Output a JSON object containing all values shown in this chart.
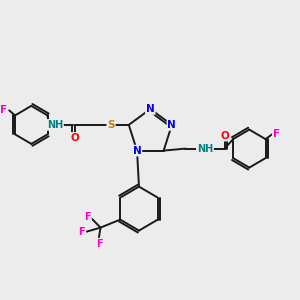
{
  "background_color": "#ececec",
  "figsize": [
    3.0,
    3.0
  ],
  "dpi": 100,
  "bond_color": "#1a1a1a",
  "bond_width": 1.4,
  "atom_colors": {
    "N": "#0000ee",
    "O": "#ff0000",
    "F": "#ff00dd",
    "S": "#b8860b",
    "NH": "#008080",
    "C": "#1a1a1a"
  },
  "font_size": 7.5
}
